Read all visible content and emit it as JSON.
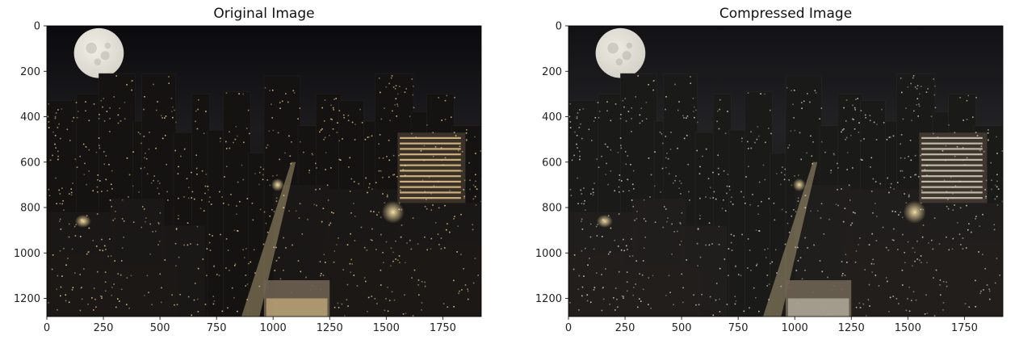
{
  "figure": {
    "title_left": "Original Image",
    "title_right": "Compressed Image"
  },
  "chart_data": [
    {
      "type": "image",
      "title": "Original Image",
      "xlabel": "",
      "ylabel": "",
      "xlim": [
        0,
        1920
      ],
      "ylim": [
        1280,
        0
      ],
      "xticks": [
        0,
        250,
        500,
        750,
        1000,
        1250,
        1500,
        1750
      ],
      "yticks": [
        0,
        200,
        400,
        600,
        800,
        1000,
        1200
      ],
      "image_description": "night city skyline with full moon, warm-lit skyscrapers and a glowing street"
    },
    {
      "type": "image",
      "title": "Compressed Image",
      "xlabel": "",
      "ylabel": "",
      "xlim": [
        0,
        1920
      ],
      "ylim": [
        1280,
        0
      ],
      "xticks": [
        0,
        250,
        500,
        750,
        1000,
        1250,
        1500,
        1750
      ],
      "yticks": [
        0,
        200,
        400,
        600,
        800,
        1000,
        1200
      ],
      "image_description": "same night city skyline, slightly flatter cooler tones after color compression"
    }
  ],
  "colors": {
    "sky_top": "#0b0b0e",
    "sky_mid": "#1c1b1e",
    "building_dark": "#141312",
    "window_light_original": "#e8c88a",
    "window_light_compressed": "#d9d4c3",
    "moon": "#d8d6cc",
    "street_glow": "#ffe6a8"
  }
}
